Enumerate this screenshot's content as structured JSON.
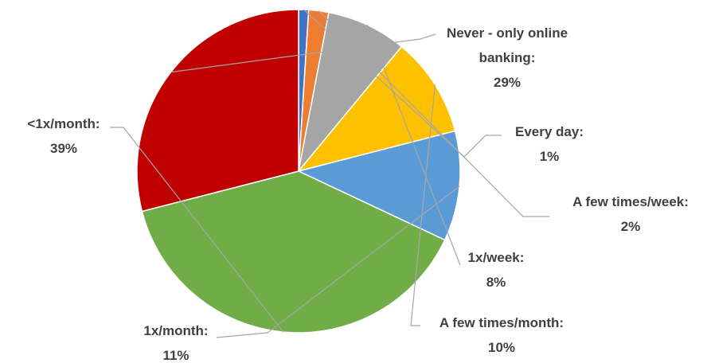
{
  "chart_data": {
    "type": "pie",
    "title": "",
    "slices": [
      {
        "name": "Every day",
        "value": 1,
        "label_name": "Every day:",
        "label_value": "1%",
        "color": "#4472C4"
      },
      {
        "name": "A few times/week",
        "value": 2,
        "label_name": "A few times/week:",
        "label_value": "2%",
        "color": "#ED7D31"
      },
      {
        "name": "1x/week",
        "value": 8,
        "label_name": "1x/week:",
        "label_value": "8%",
        "color": "#A5A5A5"
      },
      {
        "name": "A few times/month",
        "value": 10,
        "label_name": "A few times/month:",
        "label_value": "10%",
        "color": "#FFC000"
      },
      {
        "name": "1x/month",
        "value": 11,
        "label_name": "1x/month:",
        "label_value": "11%",
        "color": "#5B9BD5"
      },
      {
        "name": "<1x/month",
        "value": 39,
        "label_name": "<1x/month:",
        "label_value": "39%",
        "color": "#70AD47"
      },
      {
        "name": "Never - only online banking",
        "value": 29,
        "label_name": [
          "Never - only online",
          "banking:"
        ],
        "label_value": "29%",
        "color": "#C00000"
      }
    ],
    "start_angle_deg": 90,
    "direction": "clockwise",
    "legend": "none",
    "data_labels": "outside with leader lines"
  }
}
